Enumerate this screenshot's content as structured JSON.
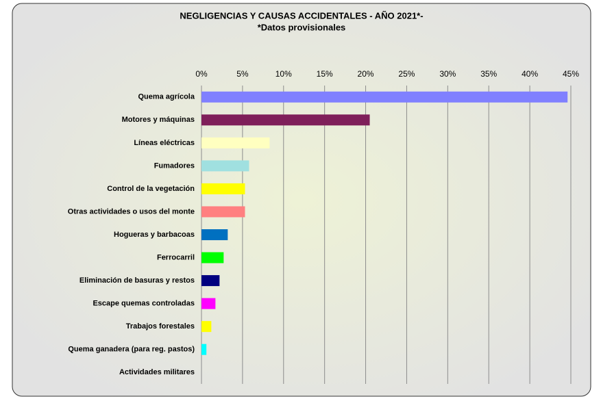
{
  "chart_data": {
    "type": "bar",
    "orientation": "horizontal",
    "title": "NEGLIGENCIAS Y CAUSAS ACCIDENTALES - AÑO 2021*-",
    "subtitle": "*Datos provisionales",
    "categories": [
      "Quema agrícola",
      "Motores y máquinas",
      "Líneas eléctricas",
      "Fumadores",
      "Control de la vegetación",
      "Otras actividades o usos del monte",
      "Hogueras y barbacoas",
      "Ferrocarril",
      "Eliminación de basuras y restos",
      "Escape quemas controladas",
      "Trabajos forestales",
      "Quema ganadera (para reg. pastos)",
      "Actividades militares"
    ],
    "values": [
      44.6,
      20.5,
      8.3,
      5.8,
      5.3,
      5.3,
      3.2,
      2.7,
      2.2,
      1.7,
      1.2,
      0.6,
      0
    ],
    "colors": [
      "#8080ff",
      "#7f1f5a",
      "#ffffc0",
      "#a0e0e0",
      "#ffff00",
      "#ff8080",
      "#0070c0",
      "#00ff00",
      "#000080",
      "#ff00ff",
      "#ffff00",
      "#00ffff",
      "#000000"
    ],
    "xlim": [
      0,
      45
    ],
    "xticks": [
      {
        "value": 0,
        "label": "0%"
      },
      {
        "value": 5,
        "label": "5%"
      },
      {
        "value": 10,
        "label": "10%"
      },
      {
        "value": 15,
        "label": "15%"
      },
      {
        "value": 20,
        "label": "20%"
      },
      {
        "value": 25,
        "label": "25%"
      },
      {
        "value": 30,
        "label": "30%"
      },
      {
        "value": 35,
        "label": "35%"
      },
      {
        "value": 40,
        "label": "40%"
      },
      {
        "value": 45,
        "label": "45%"
      }
    ],
    "grid": true
  }
}
